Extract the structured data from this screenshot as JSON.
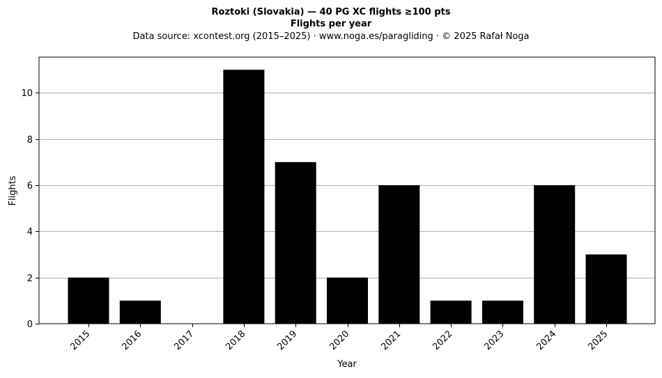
{
  "chart_data": {
    "type": "bar",
    "title_line1": "Roztoki (Slovakia)  —  40 PG XC flights ≥100 pts",
    "title_line2": "Flights per year",
    "subtitle": "Data source: xcontest.org (2015–2025)  ·  www.noga.es/paragliding  ·  © 2025 Rafał Noga",
    "xlabel": "Year",
    "ylabel": "Flights",
    "categories": [
      "2015",
      "2016",
      "2017",
      "2018",
      "2019",
      "2020",
      "2021",
      "2022",
      "2023",
      "2024",
      "2025"
    ],
    "values": [
      2,
      1,
      0,
      11,
      7,
      2,
      6,
      1,
      1,
      6,
      3
    ],
    "ylim": [
      0,
      11.55
    ],
    "yticks": [
      0,
      2,
      4,
      6,
      8,
      10
    ],
    "grid": "horizontal",
    "bar_color": "#000000",
    "grid_color": "#b0b0b0"
  }
}
